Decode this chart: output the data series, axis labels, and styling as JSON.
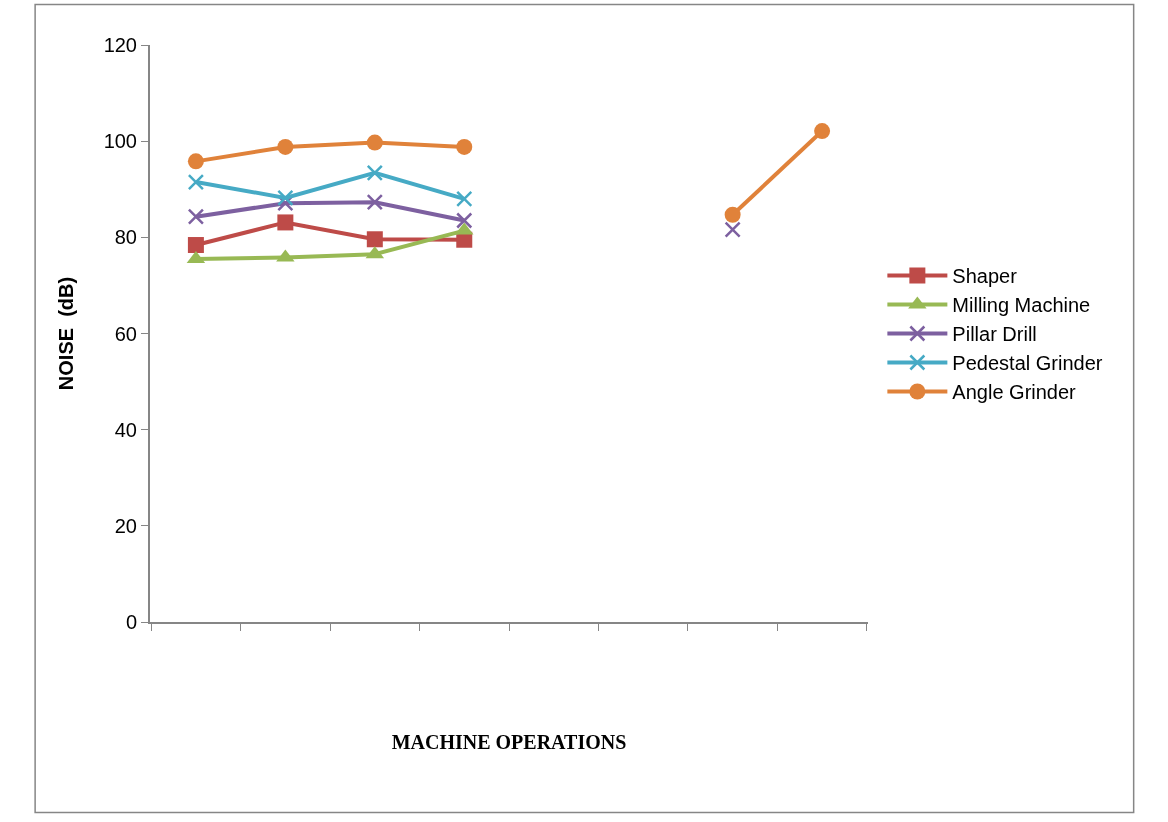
{
  "chart_data": {
    "type": "line",
    "xlabel": "MACHINE OPERATIONS",
    "ylabel": "NOISE  (dB)",
    "categories": [
      null,
      null,
      null,
      null,
      null,
      null,
      null,
      null
    ],
    "ylim": [
      0,
      120
    ],
    "yticks": [
      0,
      20,
      40,
      60,
      80,
      100,
      120
    ],
    "legend": "right",
    "series": [
      {
        "name": "Shaper",
        "color": "#be4b48",
        "marker": "square",
        "values": [
          78.4,
          83.1,
          79.6,
          79.5,
          null,
          null,
          null,
          null
        ]
      },
      {
        "name": "Milling Machine",
        "color": "#98b954",
        "marker": "triangle",
        "values": [
          75.5,
          75.8,
          76.5,
          81.4,
          null,
          null,
          null,
          null
        ]
      },
      {
        "name": "Pillar Drill",
        "color": "#7d60a0",
        "marker": "cross",
        "values": [
          84.3,
          87.1,
          87.3,
          83.5,
          null,
          null,
          81.6,
          null
        ]
      },
      {
        "name": "Pedestal Grinder",
        "color": "#46aac5",
        "marker": "cross",
        "values": [
          91.5,
          88.2,
          93.4,
          88.0,
          null,
          null,
          null,
          null
        ]
      },
      {
        "name": "Angle Grinder",
        "color": "#e0823a",
        "marker": "circle",
        "values": [
          95.8,
          98.8,
          99.7,
          98.8,
          null,
          null,
          84.7,
          102.1
        ]
      }
    ]
  }
}
